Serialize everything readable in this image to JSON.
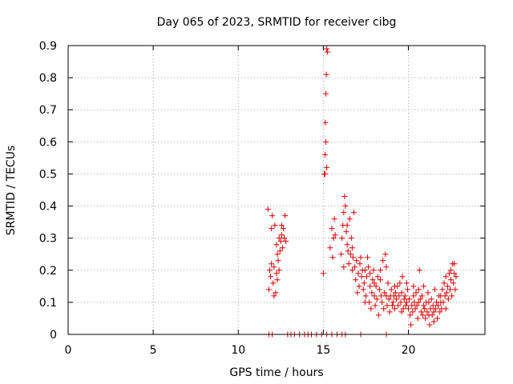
{
  "chart_data": {
    "type": "scatter",
    "title": "Day 065 of 2023, SRMTID for receiver cibg",
    "xlabel": "GPS time / hours",
    "ylabel": "SRMTID / TECUs",
    "xlim": [
      0,
      24.5
    ],
    "ylim": [
      0,
      0.9
    ],
    "xticks": [
      0,
      5,
      10,
      15,
      20
    ],
    "xtick_labels": [
      "0",
      "5",
      "10",
      "15",
      "20"
    ],
    "yticks": [
      0,
      0.1,
      0.2,
      0.3,
      0.4,
      0.5,
      0.6,
      0.7,
      0.8,
      0.9
    ],
    "ytick_labels": [
      "0",
      "0.1",
      "0.2",
      "0.3",
      "0.4",
      "0.5",
      "0.6",
      "0.7",
      "0.8",
      "0.9"
    ],
    "grid": true,
    "marker": "+",
    "marker_color": "#e00000",
    "series": [
      {
        "name": "SRMTID",
        "points": [
          [
            11.8,
            0.0
          ],
          [
            12.0,
            0.0
          ],
          [
            12.9,
            0.0
          ],
          [
            13.1,
            0.0
          ],
          [
            13.3,
            0.0
          ],
          [
            13.6,
            0.0
          ],
          [
            13.9,
            0.0
          ],
          [
            14.1,
            0.0
          ],
          [
            14.3,
            0.0
          ],
          [
            14.6,
            0.0
          ],
          [
            14.9,
            0.0
          ],
          [
            15.2,
            0.0
          ],
          [
            15.5,
            0.0
          ],
          [
            15.8,
            0.0
          ],
          [
            16.1,
            0.0
          ],
          [
            16.3,
            0.0
          ],
          [
            17.2,
            0.0
          ],
          [
            18.7,
            0.0
          ],
          [
            11.75,
            0.39
          ],
          [
            11.8,
            0.14
          ],
          [
            11.85,
            0.2
          ],
          [
            11.9,
            0.18
          ],
          [
            11.95,
            0.22
          ],
          [
            12.0,
            0.37
          ],
          [
            12.05,
            0.16
          ],
          [
            12.1,
            0.21
          ],
          [
            12.15,
            0.34
          ],
          [
            12.2,
            0.13
          ],
          [
            12.25,
            0.19
          ],
          [
            12.25,
            0.28
          ],
          [
            12.3,
            0.25
          ],
          [
            12.3,
            0.17
          ],
          [
            12.35,
            0.23
          ],
          [
            12.4,
            0.3
          ],
          [
            12.45,
            0.26
          ],
          [
            12.5,
            0.29
          ],
          [
            12.55,
            0.31
          ],
          [
            12.6,
            0.27
          ],
          [
            12.65,
            0.33
          ],
          [
            12.7,
            0.3
          ],
          [
            12.75,
            0.37
          ],
          [
            12.8,
            0.29
          ],
          [
            11.95,
            0.33
          ],
          [
            12.1,
            0.12
          ],
          [
            12.4,
            0.2
          ],
          [
            12.55,
            0.34
          ],
          [
            15.0,
            0.19
          ],
          [
            15.05,
            0.5
          ],
          [
            15.1,
            0.56
          ],
          [
            15.12,
            0.66
          ],
          [
            15.15,
            0.75
          ],
          [
            15.18,
            0.81
          ],
          [
            15.2,
            0.89
          ],
          [
            15.15,
            0.6
          ],
          [
            15.2,
            0.52
          ],
          [
            15.25,
            0.88
          ],
          [
            15.1,
            0.5
          ],
          [
            15.4,
            0.27
          ],
          [
            15.5,
            0.33
          ],
          [
            15.55,
            0.24
          ],
          [
            15.6,
            0.3
          ],
          [
            15.65,
            0.36
          ],
          [
            15.7,
            0.31
          ],
          [
            16.05,
            0.25
          ],
          [
            16.1,
            0.3
          ],
          [
            16.15,
            0.34
          ],
          [
            16.2,
            0.38
          ],
          [
            16.25,
            0.43
          ],
          [
            16.3,
            0.4
          ],
          [
            16.35,
            0.32
          ],
          [
            16.4,
            0.28
          ],
          [
            16.45,
            0.26
          ],
          [
            16.5,
            0.22
          ],
          [
            16.55,
            0.36
          ],
          [
            16.6,
            0.25
          ],
          [
            16.65,
            0.3
          ],
          [
            16.7,
            0.27
          ],
          [
            16.75,
            0.24
          ],
          [
            16.8,
            0.38
          ],
          [
            16.85,
            0.21
          ],
          [
            16.9,
            0.17
          ],
          [
            16.95,
            0.23
          ],
          [
            17.0,
            0.13
          ],
          [
            17.05,
            0.19
          ],
          [
            17.1,
            0.15
          ],
          [
            17.2,
            0.24
          ],
          [
            17.25,
            0.18
          ],
          [
            17.3,
            0.2
          ],
          [
            17.35,
            0.14
          ],
          [
            17.4,
            0.16
          ],
          [
            17.45,
            0.1
          ],
          [
            17.5,
            0.12
          ],
          [
            17.55,
            0.18
          ],
          [
            17.6,
            0.24
          ],
          [
            17.65,
            0.21
          ],
          [
            17.7,
            0.1
          ],
          [
            17.75,
            0.15
          ],
          [
            17.8,
            0.08
          ],
          [
            17.85,
            0.13
          ],
          [
            17.9,
            0.17
          ],
          [
            17.95,
            0.2
          ],
          [
            18.0,
            0.12
          ],
          [
            18.05,
            0.09
          ],
          [
            18.1,
            0.15
          ],
          [
            18.15,
            0.11
          ],
          [
            18.2,
            0.18
          ],
          [
            18.25,
            0.06
          ],
          [
            18.3,
            0.14
          ],
          [
            18.35,
            0.2
          ],
          [
            18.4,
            0.12
          ],
          [
            18.45,
            0.1
          ],
          [
            18.5,
            0.23
          ],
          [
            18.55,
            0.08
          ],
          [
            18.6,
            0.13
          ],
          [
            18.65,
            0.25
          ],
          [
            18.7,
            0.12
          ],
          [
            18.75,
            0.09
          ],
          [
            18.8,
            0.16
          ],
          [
            18.85,
            0.11
          ],
          [
            18.9,
            0.07
          ],
          [
            18.95,
            0.12
          ],
          [
            19.0,
            0.14
          ],
          [
            19.05,
            0.09
          ],
          [
            19.1,
            0.1
          ],
          [
            19.15,
            0.12
          ],
          [
            19.2,
            0.08
          ],
          [
            19.25,
            0.13
          ],
          [
            19.3,
            0.11
          ],
          [
            19.35,
            0.15
          ],
          [
            19.4,
            0.09
          ],
          [
            19.45,
            0.12
          ],
          [
            19.5,
            0.16
          ],
          [
            19.55,
            0.1
          ],
          [
            19.6,
            0.13
          ],
          [
            19.65,
            0.18
          ],
          [
            19.7,
            0.08
          ],
          [
            19.75,
            0.11
          ],
          [
            19.8,
            0.12
          ],
          [
            19.85,
            0.09
          ],
          [
            19.9,
            0.1
          ],
          [
            19.95,
            0.14
          ],
          [
            20.0,
            0.08
          ],
          [
            20.05,
            0.11
          ],
          [
            20.1,
            0.06
          ],
          [
            20.15,
            0.03
          ],
          [
            20.2,
            0.09
          ],
          [
            20.25,
            0.07
          ],
          [
            20.3,
            0.12
          ],
          [
            20.35,
            0.1
          ],
          [
            20.4,
            0.08
          ],
          [
            20.45,
            0.13
          ],
          [
            20.5,
            0.09
          ],
          [
            20.55,
            0.05
          ],
          [
            20.6,
            0.1
          ],
          [
            20.65,
            0.2
          ],
          [
            20.7,
            0.11
          ],
          [
            20.75,
            0.07
          ],
          [
            20.8,
            0.12
          ],
          [
            20.85,
            0.06
          ],
          [
            20.9,
            0.09
          ],
          [
            20.95,
            0.08
          ],
          [
            21.0,
            0.05
          ],
          [
            21.05,
            0.1
          ],
          [
            21.1,
            0.07
          ],
          [
            21.15,
            0.13
          ],
          [
            21.2,
            0.06
          ],
          [
            21.25,
            0.03
          ],
          [
            21.3,
            0.08
          ],
          [
            21.35,
            0.11
          ],
          [
            21.4,
            0.06
          ],
          [
            21.45,
            0.09
          ],
          [
            21.5,
            0.07
          ],
          [
            21.55,
            0.14
          ],
          [
            21.6,
            0.08
          ],
          [
            21.65,
            0.1
          ],
          [
            21.7,
            0.05
          ],
          [
            21.75,
            0.09
          ],
          [
            21.8,
            0.12
          ],
          [
            21.85,
            0.07
          ],
          [
            21.9,
            0.1
          ],
          [
            21.95,
            0.08
          ],
          [
            22.0,
            0.14
          ],
          [
            22.05,
            0.1
          ],
          [
            22.1,
            0.16
          ],
          [
            22.15,
            0.12
          ],
          [
            22.2,
            0.18
          ],
          [
            22.25,
            0.13
          ],
          [
            22.3,
            0.15
          ],
          [
            22.35,
            0.11
          ],
          [
            22.4,
            0.19
          ],
          [
            22.45,
            0.14
          ],
          [
            22.5,
            0.17
          ],
          [
            22.55,
            0.12
          ],
          [
            22.6,
            0.22
          ],
          [
            22.65,
            0.16
          ],
          [
            22.7,
            0.19
          ],
          [
            22.75,
            0.14
          ],
          [
            22.8,
            0.18
          ],
          [
            16.2,
            0.21
          ],
          [
            16.4,
            0.34
          ],
          [
            16.7,
            0.2
          ],
          [
            17.15,
            0.22
          ],
          [
            17.45,
            0.2
          ],
          [
            17.75,
            0.19
          ],
          [
            18.0,
            0.16
          ],
          [
            18.35,
            0.17
          ],
          [
            18.7,
            0.21
          ],
          [
            19.2,
            0.15
          ],
          [
            19.6,
            0.07
          ],
          [
            19.9,
            0.16
          ],
          [
            20.3,
            0.15
          ],
          [
            20.6,
            0.14
          ],
          [
            20.9,
            0.15
          ],
          [
            21.2,
            0.1
          ],
          [
            21.5,
            0.04
          ],
          [
            21.9,
            0.12
          ],
          [
            22.2,
            0.08
          ],
          [
            22.5,
            0.2
          ],
          [
            22.7,
            0.22
          ]
        ]
      }
    ]
  }
}
